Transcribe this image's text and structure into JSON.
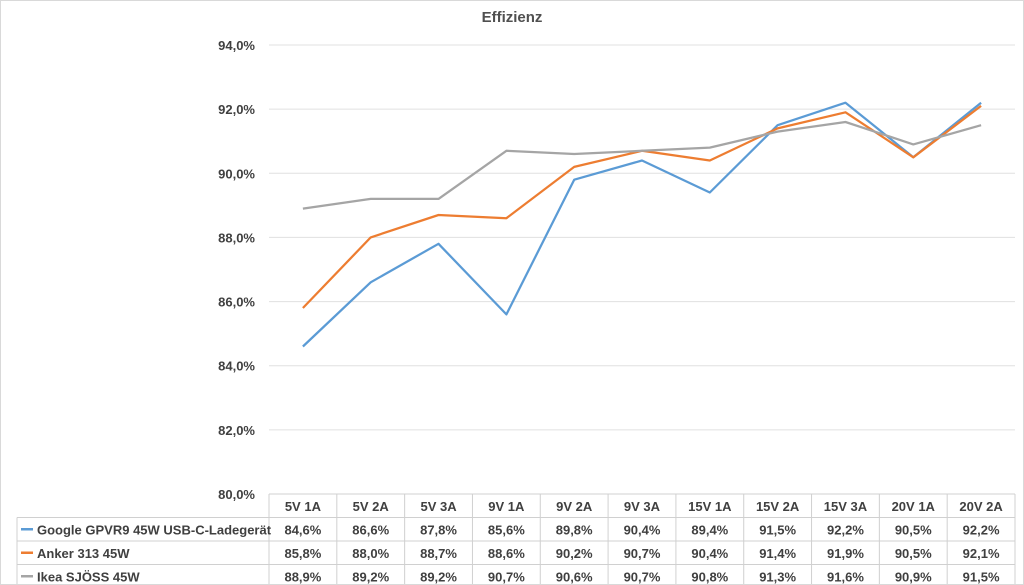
{
  "chart_data": {
    "type": "line",
    "title": "Effizienz",
    "xlabel": "",
    "ylabel": "",
    "ylim": [
      80.0,
      94.0
    ],
    "ytick_step": 2.0,
    "grid": true,
    "legend": "data-table-left",
    "categories": [
      "5V 1A",
      "5V 2A",
      "5V 3A",
      "9V 1A",
      "9V 2A",
      "9V 3A",
      "15V 1A",
      "15V 2A",
      "15V 3A",
      "20V 1A",
      "20V 2A"
    ],
    "series": [
      {
        "name": "Google GPVR9 45W USB-C-Ladegerät",
        "color": "#5b9bd5",
        "values": [
          84.6,
          86.6,
          87.8,
          85.6,
          89.8,
          90.4,
          89.4,
          91.5,
          92.2,
          90.5,
          92.2
        ]
      },
      {
        "name": "Anker 313 45W",
        "color": "#ed7d31",
        "values": [
          85.8,
          88.0,
          88.7,
          88.6,
          90.2,
          90.7,
          90.4,
          91.4,
          91.9,
          90.5,
          92.1
        ]
      },
      {
        "name": "Ikea SJÖSS 45W",
        "color": "#a5a5a5",
        "values": [
          88.9,
          89.2,
          89.2,
          90.7,
          90.6,
          90.7,
          90.8,
          91.3,
          91.6,
          90.9,
          91.5
        ]
      }
    ]
  }
}
